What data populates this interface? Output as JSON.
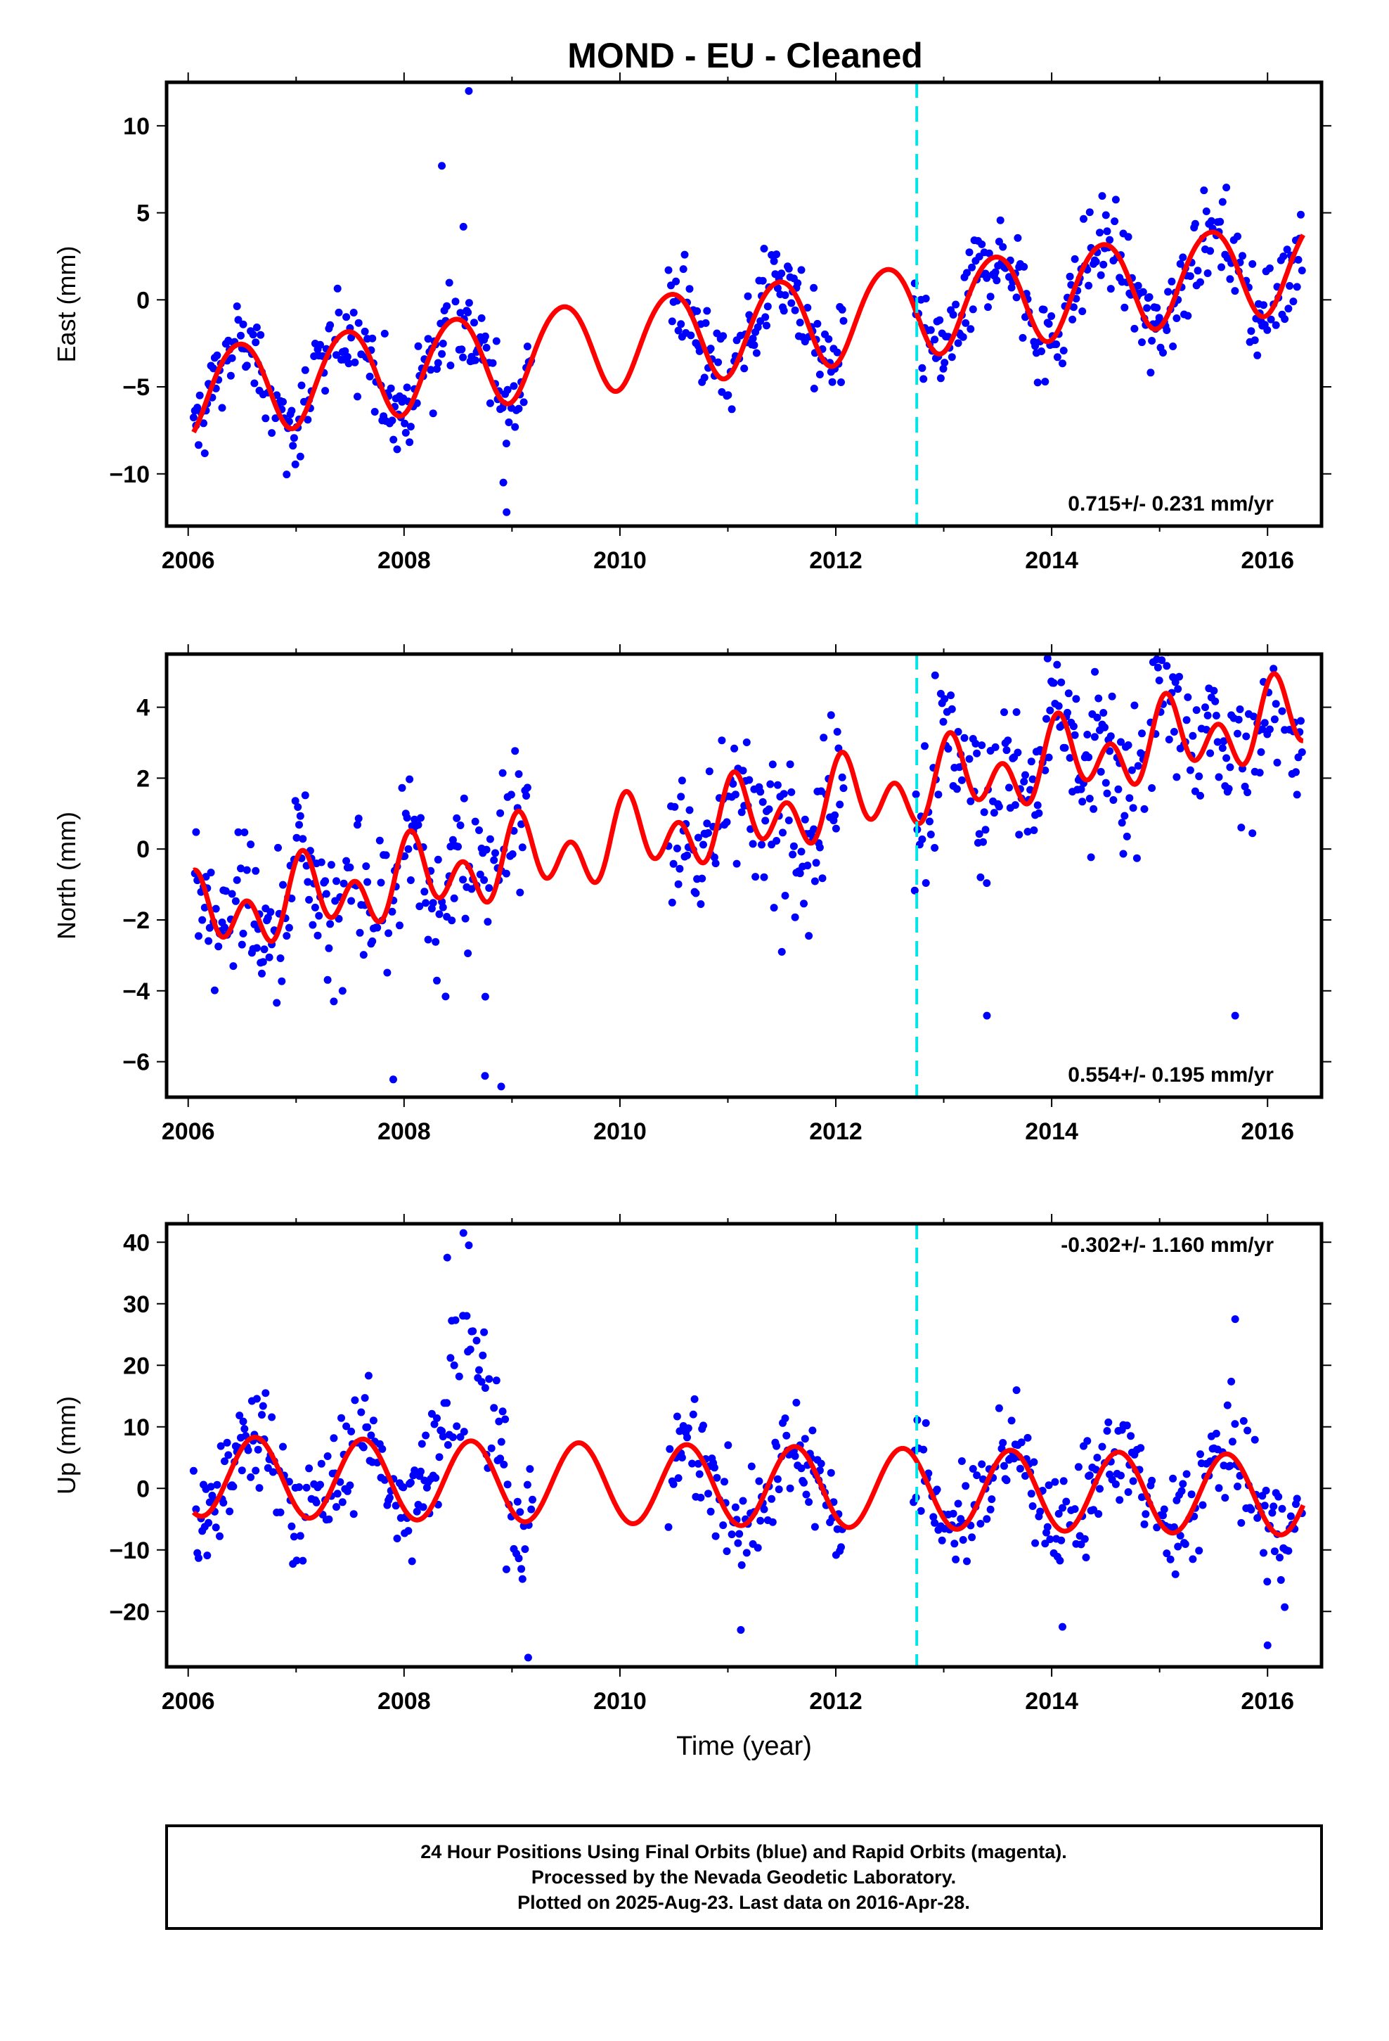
{
  "chart_title": "MOND  - EU - Cleaned",
  "colors": {
    "final_orbits": "#0000ff",
    "rapid_orbits": "#ff00ff",
    "model": "#ff0000",
    "equipment_change": "#00e5e5",
    "frame": "#000000"
  },
  "chart_data": [
    {
      "type": "scatter",
      "title": "",
      "xlabel": "",
      "ylabel": "East (mm)",
      "xlim": [
        2005.8,
        2016.5
      ],
      "ylim": [
        -13,
        12.5
      ],
      "xticks": [
        "2006",
        "2008",
        "2010",
        "2012",
        "2014",
        "2016"
      ],
      "xtick_values": [
        2006,
        2008,
        2010,
        2012,
        2014,
        2016
      ],
      "yticks": [
        "10",
        "5",
        "0",
        "−5",
        "−10"
      ],
      "ytick_values": [
        10,
        5,
        0,
        -5,
        -10
      ],
      "rate_text": "0.715+/- 0.231 mm/yr",
      "rate_position": "bottom-right",
      "equipment_change_x": 2012.75,
      "data_segments": [
        [
          2006.05,
          2009.2
        ],
        [
          2010.45,
          2012.08
        ],
        [
          2012.72,
          2016.33
        ]
      ],
      "model": {
        "offset": -5.3,
        "trend": 0.715,
        "amp_annual": 2.6,
        "phase_annual": 2006.47,
        "amp_semi": 0.2,
        "phase_semi": 2006.2,
        "step_at": 2012.75,
        "step": 0.0
      },
      "noise_sd": 1.3,
      "outliers": [
        [
          2008.35,
          7.7
        ],
        [
          2008.6,
          12.0
        ],
        [
          2008.55,
          4.2
        ],
        [
          2008.92,
          -10.5
        ],
        [
          2008.95,
          -12.2
        ],
        [
          2011.8,
          -5.1
        ]
      ],
      "series": [
        {
          "name": "24 Hour Positions Using Final Orbits (blue)"
        }
      ]
    },
    {
      "type": "scatter",
      "title": "",
      "xlabel": "",
      "ylabel": "North (mm)",
      "xlim": [
        2005.8,
        2016.5
      ],
      "ylim": [
        -7,
        5.5
      ],
      "xticks": [
        "2006",
        "2008",
        "2010",
        "2012",
        "2014",
        "2016"
      ],
      "xtick_values": [
        2006,
        2008,
        2010,
        2012,
        2014,
        2016
      ],
      "yticks": [
        "4",
        "2",
        "0",
        "−2",
        "−4",
        "−6"
      ],
      "ytick_values": [
        4,
        2,
        0,
        -2,
        -4,
        -6
      ],
      "rate_text": "0.554+/- 0.195 mm/yr",
      "rate_position": "bottom-right",
      "equipment_change_x": 2012.75,
      "data_segments": [
        [
          2006.05,
          2009.15
        ],
        [
          2010.45,
          2012.08
        ],
        [
          2012.72,
          2016.33
        ]
      ],
      "model": {
        "offset": -2.0,
        "trend": 0.554,
        "amp_annual": 0.6,
        "phase_annual": 2006.1,
        "amp_semi": 0.8,
        "phase_semi": 2006.05,
        "step_at": 2012.75,
        "step": 0.0
      },
      "noise_sd": 1.1,
      "outliers": [
        [
          2007.9,
          -6.5
        ],
        [
          2008.75,
          -6.4
        ],
        [
          2008.9,
          -6.7
        ],
        [
          2012.92,
          4.9
        ],
        [
          2014.05,
          5.2
        ],
        [
          2014.4,
          5.0
        ],
        [
          2013.4,
          -4.7
        ],
        [
          2015.7,
          -4.7
        ],
        [
          2011.5,
          -2.9
        ]
      ],
      "series": [
        {
          "name": "24 Hour Positions Using Final Orbits (blue)"
        }
      ]
    },
    {
      "type": "scatter",
      "title": "",
      "xlabel": "Time (year)",
      "ylabel": "Up (mm)",
      "xlim": [
        2005.8,
        2016.5
      ],
      "ylim": [
        -29,
        43
      ],
      "xticks": [
        "2006",
        "2008",
        "2010",
        "2012",
        "2014",
        "2016"
      ],
      "xtick_values": [
        2006,
        2008,
        2010,
        2012,
        2014,
        2016
      ],
      "yticks": [
        "40",
        "30",
        "20",
        "10",
        "0",
        "−10",
        "−20"
      ],
      "ytick_values": [
        40,
        30,
        20,
        10,
        0,
        -10,
        -20
      ],
      "rate_text": "-0.302+/- 1.160 mm/yr",
      "rate_position": "top-right",
      "equipment_change_x": 2012.75,
      "data_segments": [
        [
          2006.05,
          2009.2
        ],
        [
          2010.45,
          2012.08
        ],
        [
          2012.72,
          2016.33
        ]
      ],
      "model": {
        "offset": 2.0,
        "trend": -0.302,
        "amp_annual": 6.5,
        "phase_annual": 2006.62,
        "amp_semi": 0.0,
        "phase_semi": 2006.0,
        "step_at": 2012.75,
        "step": 0.0
      },
      "noise_sd": 4.5,
      "anomaly": {
        "from": 2008.05,
        "to": 2009.0,
        "add": 14
      },
      "outliers": [
        [
          2008.55,
          41.5
        ],
        [
          2008.6,
          39.5
        ],
        [
          2008.4,
          37.5
        ],
        [
          2009.15,
          -27.5
        ],
        [
          2015.7,
          27.5
        ],
        [
          2016.0,
          -25.5
        ],
        [
          2014.1,
          -22.5
        ],
        [
          2011.12,
          -23.0
        ]
      ],
      "series": [
        {
          "name": "24 Hour Positions Using Final Orbits (blue)"
        }
      ]
    }
  ],
  "caption": {
    "line1": "24 Hour Positions Using Final Orbits (blue) and Rapid Orbits (magenta).",
    "line2": "Processed by the Nevada Geodetic Laboratory.",
    "line3": "Plotted on 2025-Aug-23. Last data on 2016-Apr-28."
  }
}
